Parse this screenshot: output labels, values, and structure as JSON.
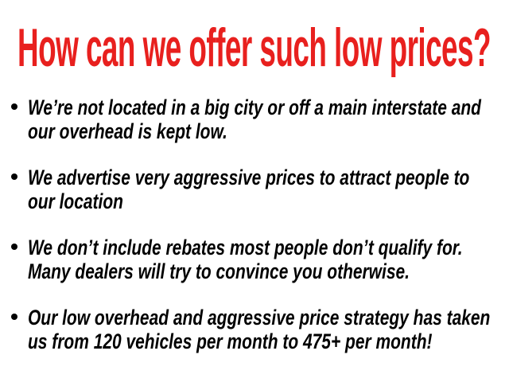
{
  "title": "How can we offer such low prices?",
  "colors": {
    "title": "#e8201e",
    "text": "#000000"
  },
  "bullets": [
    {
      "lines": [
        "We’re not located in a big city or off a main interstate and",
        "our overhead is kept low."
      ]
    },
    {
      "lines": [
        "We advertise very aggressive prices to attract people to",
        "our location"
      ]
    },
    {
      "lines": [
        "We don’t include rebates most people don’t qualify for.",
        "Many dealers will try to convince you otherwise."
      ]
    },
    {
      "lines": [
        "Our low overhead and aggressive price strategy has taken",
        "us from 120 vehicles per month to 475+ per month!"
      ]
    }
  ]
}
